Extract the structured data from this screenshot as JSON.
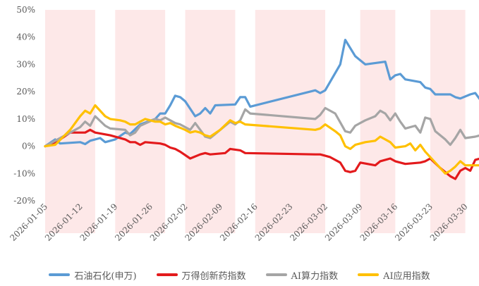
{
  "chart_data": {
    "type": "line",
    "title": "",
    "xlabel": "",
    "ylabel": "",
    "ylim": [
      -20,
      50
    ],
    "y_ticks": [
      "50%",
      "40%",
      "30%",
      "20%",
      "10%",
      "0%",
      "-10%",
      "-20%"
    ],
    "y_tick_values": [
      50,
      40,
      30,
      20,
      10,
      0,
      -10,
      -20
    ],
    "x_tick_labels": [
      "2026-01-05",
      "2026-01-12",
      "2026-01-19",
      "2026-01-26",
      "2026-02-02",
      "2026-02-09",
      "2026-02-16",
      "2026-02-23",
      "2026-03-02",
      "2026-03-09",
      "2026-03-16",
      "2026-03-23",
      "2026-03-30"
    ],
    "x_range": [
      "2026-01-05",
      "2026-04-03"
    ],
    "grid": false,
    "legend_position": "bottom",
    "shaded_periods": [
      [
        "2026-01-05",
        "2026-01-15"
      ],
      [
        "2026-01-19",
        "2026-01-29"
      ],
      [
        "2026-02-02",
        "2026-02-12"
      ],
      [
        "2026-02-16",
        "2026-03-02"
      ],
      [
        "2026-03-09",
        "2026-03-16"
      ],
      [
        "2026-03-23",
        "2026-03-30"
      ]
    ],
    "shade_color": "#fde8e8",
    "series": [
      {
        "name": "石油石化(申万)",
        "color": "#5b9bd5",
        "points": [
          [
            "2026-01-05",
            0
          ],
          [
            "2026-01-07",
            2.5
          ],
          [
            "2026-01-08",
            1
          ],
          [
            "2026-01-12",
            1.5
          ],
          [
            "2026-01-13",
            0.8
          ],
          [
            "2026-01-14",
            2
          ],
          [
            "2026-01-16",
            3
          ],
          [
            "2026-01-17",
            1.5
          ],
          [
            "2026-01-19",
            2.5
          ],
          [
            "2026-01-21",
            5
          ],
          [
            "2026-01-22",
            4.5
          ],
          [
            "2026-01-24",
            8
          ],
          [
            "2026-01-27",
            10
          ],
          [
            "2026-01-28",
            12
          ],
          [
            "2026-01-29",
            12
          ],
          [
            "2026-01-30",
            15
          ],
          [
            "2026-01-31",
            18.5
          ],
          [
            "2026-02-01",
            18
          ],
          [
            "2026-02-02",
            16.5
          ],
          [
            "2026-02-04",
            11
          ],
          [
            "2026-02-05",
            12
          ],
          [
            "2026-02-06",
            14
          ],
          [
            "2026-02-07",
            12
          ],
          [
            "2026-02-08",
            15
          ],
          [
            "2026-02-12",
            15.3
          ],
          [
            "2026-02-13",
            18
          ],
          [
            "2026-02-14",
            18
          ],
          [
            "2026-02-15",
            14.5
          ],
          [
            "2026-02-28",
            20.5
          ],
          [
            "2026-03-01",
            19.5
          ],
          [
            "2026-03-02",
            20.5
          ],
          [
            "2026-03-05",
            30
          ],
          [
            "2026-03-06",
            39
          ],
          [
            "2026-03-08",
            33
          ],
          [
            "2026-03-10",
            30
          ],
          [
            "2026-03-14",
            31
          ],
          [
            "2026-03-15",
            24.5
          ],
          [
            "2026-03-16",
            26
          ],
          [
            "2026-03-17",
            26.5
          ],
          [
            "2026-03-18",
            24.5
          ],
          [
            "2026-03-21",
            23.5
          ],
          [
            "2026-03-22",
            21.5
          ],
          [
            "2026-03-23",
            21
          ],
          [
            "2026-03-24",
            19
          ],
          [
            "2026-03-27",
            19
          ],
          [
            "2026-03-28",
            18
          ],
          [
            "2026-03-29",
            17.5
          ],
          [
            "2026-03-31",
            19
          ],
          [
            "2026-04-01",
            19.5
          ],
          [
            "2026-04-02",
            17
          ],
          [
            "2026-04-03",
            17
          ],
          [
            "2026-04-04",
            19
          ]
        ]
      },
      {
        "name": "万得创新药指数",
        "color": "#e31a1c",
        "points": [
          [
            "2026-01-05",
            0
          ],
          [
            "2026-01-07",
            1.5
          ],
          [
            "2026-01-08",
            2.5
          ],
          [
            "2026-01-10",
            5
          ],
          [
            "2026-01-13",
            5
          ],
          [
            "2026-01-14",
            6
          ],
          [
            "2026-01-15",
            5
          ],
          [
            "2026-01-18",
            4
          ],
          [
            "2026-01-21",
            2.5
          ],
          [
            "2026-01-22",
            1.5
          ],
          [
            "2026-01-23",
            1.5
          ],
          [
            "2026-01-24",
            0.5
          ],
          [
            "2026-01-25",
            1.5
          ],
          [
            "2026-01-28",
            1
          ],
          [
            "2026-01-29",
            0.5
          ],
          [
            "2026-01-30",
            -0.5
          ],
          [
            "2026-01-31",
            -1
          ],
          [
            "2026-02-01",
            -2
          ],
          [
            "2026-02-03",
            -4.5
          ],
          [
            "2026-02-05",
            -3
          ],
          [
            "2026-02-06",
            -2.5
          ],
          [
            "2026-02-07",
            -3
          ],
          [
            "2026-02-10",
            -2.5
          ],
          [
            "2026-02-11",
            -1
          ],
          [
            "2026-02-13",
            -1.5
          ],
          [
            "2026-02-14",
            -2.5
          ],
          [
            "2026-02-28",
            -3
          ],
          [
            "2026-03-01",
            -3
          ],
          [
            "2026-03-02",
            -3.5
          ],
          [
            "2026-03-03",
            -4
          ],
          [
            "2026-03-05",
            -6
          ],
          [
            "2026-03-06",
            -9
          ],
          [
            "2026-03-07",
            -9.5
          ],
          [
            "2026-03-08",
            -9
          ],
          [
            "2026-03-09",
            -6
          ],
          [
            "2026-03-12",
            -7
          ],
          [
            "2026-03-13",
            -5.5
          ],
          [
            "2026-03-15",
            -4.5
          ],
          [
            "2026-03-16",
            -5.5
          ],
          [
            "2026-03-18",
            -6.5
          ],
          [
            "2026-03-21",
            -6
          ],
          [
            "2026-03-22",
            -5.5
          ],
          [
            "2026-03-23",
            -4.5
          ],
          [
            "2026-03-25",
            -8
          ],
          [
            "2026-03-27",
            -11
          ],
          [
            "2026-03-28",
            -12
          ],
          [
            "2026-03-29",
            -9
          ],
          [
            "2026-03-30",
            -8
          ],
          [
            "2026-03-31",
            -9
          ],
          [
            "2026-04-01",
            -5
          ],
          [
            "2026-04-03",
            -4
          ],
          [
            "2026-04-04",
            1.5
          ],
          [
            "2026-04-05",
            1.5
          ]
        ]
      },
      {
        "name": "AI算力指数",
        "color": "#a5a5a5",
        "points": [
          [
            "2026-01-05",
            0
          ],
          [
            "2026-01-06",
            1
          ],
          [
            "2026-01-07",
            2
          ],
          [
            "2026-01-10",
            5
          ],
          [
            "2026-01-12",
            7
          ],
          [
            "2026-01-13",
            9
          ],
          [
            "2026-01-14",
            7.5
          ],
          [
            "2026-01-15",
            11
          ],
          [
            "2026-01-17",
            7.5
          ],
          [
            "2026-01-18",
            6.5
          ],
          [
            "2026-01-21",
            6
          ],
          [
            "2026-01-22",
            4
          ],
          [
            "2026-01-23",
            5
          ],
          [
            "2026-01-24",
            7.5
          ],
          [
            "2026-01-27",
            10
          ],
          [
            "2026-01-28",
            9.5
          ],
          [
            "2026-01-29",
            10.5
          ],
          [
            "2026-01-30",
            9.5
          ],
          [
            "2026-01-31",
            8.5
          ],
          [
            "2026-02-01",
            8
          ],
          [
            "2026-02-03",
            6
          ],
          [
            "2026-02-04",
            8.5
          ],
          [
            "2026-02-05",
            6
          ],
          [
            "2026-02-06",
            3.5
          ],
          [
            "2026-02-07",
            3
          ],
          [
            "2026-02-08",
            4.5
          ],
          [
            "2026-02-10",
            7.5
          ],
          [
            "2026-02-11",
            9
          ],
          [
            "2026-02-12",
            8
          ],
          [
            "2026-02-13",
            9.5
          ],
          [
            "2026-02-14",
            13.5
          ],
          [
            "2026-02-15",
            12
          ],
          [
            "2026-02-28",
            10
          ],
          [
            "2026-03-01",
            11.5
          ],
          [
            "2026-03-02",
            14
          ],
          [
            "2026-03-04",
            12
          ],
          [
            "2026-03-06",
            5.5
          ],
          [
            "2026-03-07",
            5
          ],
          [
            "2026-03-08",
            7.5
          ],
          [
            "2026-03-10",
            9.5
          ],
          [
            "2026-03-12",
            11
          ],
          [
            "2026-03-13",
            13
          ],
          [
            "2026-03-14",
            12
          ],
          [
            "2026-03-15",
            9.5
          ],
          [
            "2026-03-16",
            12
          ],
          [
            "2026-03-17",
            9
          ],
          [
            "2026-03-18",
            6.5
          ],
          [
            "2026-03-20",
            7.5
          ],
          [
            "2026-03-21",
            5
          ],
          [
            "2026-03-22",
            10.5
          ],
          [
            "2026-03-23",
            10
          ],
          [
            "2026-03-24",
            5.5
          ],
          [
            "2026-03-26",
            2.5
          ],
          [
            "2026-03-27",
            0.5
          ],
          [
            "2026-03-28",
            3
          ],
          [
            "2026-03-29",
            6
          ],
          [
            "2026-03-30",
            3
          ],
          [
            "2026-04-01",
            3.5
          ],
          [
            "2026-04-03",
            4.5
          ],
          [
            "2026-04-04",
            2
          ],
          [
            "2026-04-05",
            5
          ],
          [
            "2026-04-06",
            1.5
          ]
        ]
      },
      {
        "name": "AI应用指数",
        "color": "#ffc000",
        "points": [
          [
            "2026-01-05",
            0
          ],
          [
            "2026-01-07",
            0.5
          ],
          [
            "2026-01-10",
            6
          ],
          [
            "2026-01-12",
            11
          ],
          [
            "2026-01-13",
            13
          ],
          [
            "2026-01-14",
            12
          ],
          [
            "2026-01-15",
            15
          ],
          [
            "2026-01-17",
            11
          ],
          [
            "2026-01-18",
            10
          ],
          [
            "2026-01-20",
            9.5
          ],
          [
            "2026-01-21",
            9
          ],
          [
            "2026-01-22",
            8
          ],
          [
            "2026-01-23",
            8
          ],
          [
            "2026-01-24",
            9
          ],
          [
            "2026-01-25",
            10
          ],
          [
            "2026-01-27",
            9
          ],
          [
            "2026-01-28",
            9
          ],
          [
            "2026-01-29",
            8
          ],
          [
            "2026-01-30",
            8.5
          ],
          [
            "2026-01-31",
            7.5
          ],
          [
            "2026-02-02",
            6
          ],
          [
            "2026-02-03",
            5
          ],
          [
            "2026-02-04",
            5.5
          ],
          [
            "2026-02-05",
            5
          ],
          [
            "2026-02-06",
            4
          ],
          [
            "2026-02-07",
            3.5
          ],
          [
            "2026-02-09",
            6
          ],
          [
            "2026-02-11",
            9.5
          ],
          [
            "2026-02-12",
            8.5
          ],
          [
            "2026-02-13",
            9
          ],
          [
            "2026-02-14",
            8
          ],
          [
            "2026-02-28",
            6
          ],
          [
            "2026-03-01",
            6.5
          ],
          [
            "2026-03-02",
            8
          ],
          [
            "2026-03-04",
            5.5
          ],
          [
            "2026-03-05",
            4
          ],
          [
            "2026-03-06",
            0
          ],
          [
            "2026-03-07",
            -1
          ],
          [
            "2026-03-08",
            0.5
          ],
          [
            "2026-03-10",
            1.5
          ],
          [
            "2026-03-12",
            2
          ],
          [
            "2026-03-13",
            3.5
          ],
          [
            "2026-03-14",
            2.5
          ],
          [
            "2026-03-15",
            1.5
          ],
          [
            "2026-03-16",
            -0.5
          ],
          [
            "2026-03-18",
            0
          ],
          [
            "2026-03-19",
            1
          ],
          [
            "2026-03-20",
            -1.5
          ],
          [
            "2026-03-21",
            0.5
          ],
          [
            "2026-03-22",
            -2
          ],
          [
            "2026-03-24",
            -6
          ],
          [
            "2026-03-26",
            -10
          ],
          [
            "2026-03-27",
            -9
          ],
          [
            "2026-03-28",
            -7.5
          ],
          [
            "2026-03-29",
            -5.5
          ],
          [
            "2026-03-30",
            -7
          ],
          [
            "2026-04-03",
            -7
          ],
          [
            "2026-04-04",
            -8
          ],
          [
            "2026-04-05",
            -6.5
          ],
          [
            "2026-04-06",
            -8.5
          ]
        ]
      }
    ]
  }
}
